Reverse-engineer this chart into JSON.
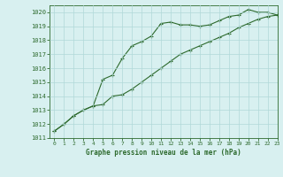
{
  "line1_x": [
    0,
    1,
    2,
    3,
    4,
    5,
    6,
    7,
    8,
    9,
    10,
    11,
    12,
    13,
    14,
    15,
    16,
    17,
    18,
    19,
    20,
    21,
    22,
    23
  ],
  "line1_y": [
    1011.5,
    1012.0,
    1012.6,
    1013.0,
    1013.3,
    1015.2,
    1015.5,
    1016.7,
    1017.6,
    1017.9,
    1018.3,
    1019.2,
    1019.3,
    1019.1,
    1019.1,
    1019.0,
    1019.1,
    1019.4,
    1019.7,
    1019.8,
    1020.2,
    1020.0,
    1020.0,
    1019.8
  ],
  "line2_x": [
    0,
    1,
    2,
    3,
    4,
    5,
    6,
    7,
    8,
    9,
    10,
    11,
    12,
    13,
    14,
    15,
    16,
    17,
    18,
    19,
    20,
    21,
    22,
    23
  ],
  "line2_y": [
    1011.5,
    1012.0,
    1012.6,
    1013.0,
    1013.3,
    1013.4,
    1014.0,
    1014.1,
    1014.5,
    1015.0,
    1015.5,
    1016.0,
    1016.5,
    1017.0,
    1017.3,
    1017.6,
    1017.9,
    1018.2,
    1018.5,
    1018.9,
    1019.2,
    1019.5,
    1019.7,
    1019.8
  ],
  "line_color": "#2d6a2d",
  "bg_color": "#d8f0f0",
  "grid_color": "#b0d8d8",
  "xlabel": "Graphe pression niveau de la mer (hPa)",
  "ylim": [
    1011,
    1020.5
  ],
  "xlim": [
    -0.5,
    23
  ],
  "yticks": [
    1011,
    1012,
    1013,
    1014,
    1015,
    1016,
    1017,
    1018,
    1019,
    1020
  ],
  "xticks": [
    0,
    1,
    2,
    3,
    4,
    5,
    6,
    7,
    8,
    9,
    10,
    11,
    12,
    13,
    14,
    15,
    16,
    17,
    18,
    19,
    20,
    21,
    22,
    23
  ]
}
